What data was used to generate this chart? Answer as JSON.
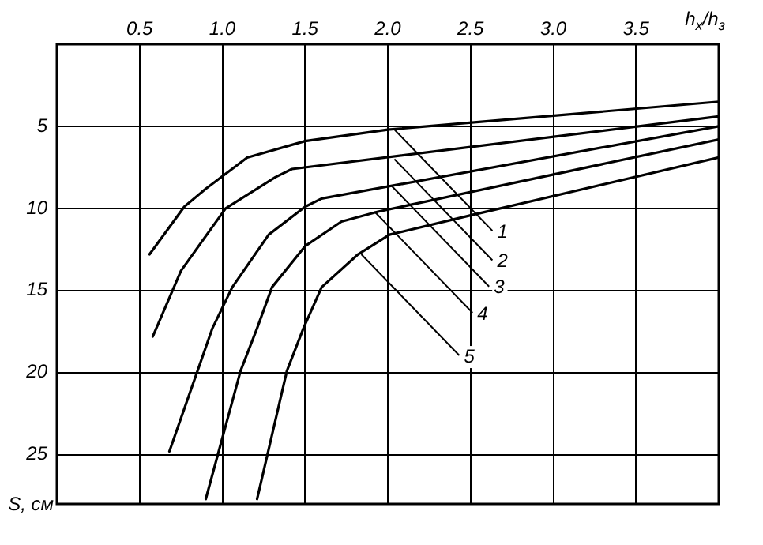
{
  "chart_data": {
    "type": "line",
    "xlabel": "h$_{x}$/h$_{з}$",
    "ylabel": "S, см",
    "xlim": [
      0,
      4
    ],
    "ylim": [
      28,
      0
    ],
    "xticks": [
      0.5,
      {
        "value": 1,
        "label": "1.0"
      },
      1.5,
      {
        "value": 2,
        "label": "2.0"
      },
      2.5,
      {
        "value": 3,
        "label": "3.0"
      },
      3.5
    ],
    "yticks": [
      5,
      10,
      15,
      20,
      25
    ],
    "grid": true,
    "legend": false,
    "marker": "none",
    "line_style": "solid",
    "series": [
      {
        "color": "#000000",
        "x": [
          0.56,
          0.77,
          0.9,
          1.15,
          1.5,
          2.0,
          4.0
        ],
        "values": [
          12.8,
          9.9,
          8.8,
          6.9,
          5.9,
          5.2,
          3.5
        ]
      },
      {
        "color": "#000000",
        "x": [
          0.58,
          0.75,
          1.02,
          1.32,
          1.42,
          4.0
        ],
        "values": [
          17.8,
          13.8,
          10.0,
          8.1,
          7.6,
          4.4
        ]
      },
      {
        "color": "#000000",
        "x": [
          0.68,
          0.94,
          1.06,
          1.28,
          1.5,
          1.6,
          4.0
        ],
        "values": [
          24.8,
          17.3,
          14.8,
          11.6,
          9.9,
          9.4,
          5.0
        ]
      },
      {
        "color": "#000000",
        "x": [
          0.9,
          1.11,
          1.21,
          1.3,
          1.5,
          1.72,
          1.94,
          4.0
        ],
        "values": [
          27.7,
          19.9,
          17.3,
          14.8,
          12.3,
          10.8,
          10.2,
          5.8
        ]
      },
      {
        "color": "#000000",
        "x": [
          1.21,
          1.39,
          1.49,
          1.6,
          1.82,
          2.01,
          2.51,
          4.0
        ],
        "values": [
          27.7,
          19.9,
          17.3,
          14.8,
          12.8,
          11.6,
          10.4,
          6.9
        ]
      }
    ],
    "annotations": [
      {
        "text": "1",
        "x": 2.04,
        "y": 5.2
      },
      {
        "text": "2",
        "x": 2.04,
        "y": 7.0
      },
      {
        "text": "3",
        "x": 2.02,
        "y": 8.6
      },
      {
        "text": "4",
        "x": 1.92,
        "y": 10.2
      },
      {
        "text": "5",
        "x": 1.84,
        "y": 12.8
      }
    ]
  }
}
